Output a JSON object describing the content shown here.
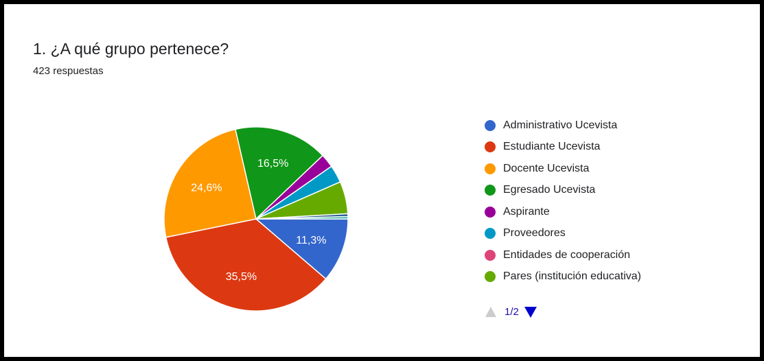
{
  "question": {
    "title": "1. ¿A qué grupo pertenece?",
    "responses": "423 respuestas"
  },
  "chart_data": {
    "type": "pie",
    "title": "",
    "slices": [
      {
        "label": "Administrativo Ucevista",
        "value": 11.3,
        "color": "#3366cc",
        "display": "11,3%"
      },
      {
        "label": "Estudiante Ucevista",
        "value": 35.5,
        "color": "#dc3912",
        "display": "35,5%"
      },
      {
        "label": "Docente Ucevista",
        "value": 24.6,
        "color": "#ff9900",
        "display": "24,6%"
      },
      {
        "label": "Egresado Ucevista",
        "value": 16.5,
        "color": "#109618",
        "display": "16,5%"
      },
      {
        "label": "Aspirante",
        "value": 2.4,
        "color": "#990099",
        "display": ""
      },
      {
        "label": "Proveedores",
        "value": 3.1,
        "color": "#0099c6",
        "display": ""
      },
      {
        "label": "Entidades de cooperación",
        "value": 0.0,
        "color": "#dd4477",
        "display": ""
      },
      {
        "label": "Pares (institución educativa)",
        "value": 5.7,
        "color": "#66aa00",
        "display": ""
      },
      {
        "label": "",
        "value": 0.5,
        "color": "#316395",
        "display": ""
      },
      {
        "label": "",
        "value": 0.4,
        "color": "#22aa99",
        "display": ""
      }
    ],
    "legend_position": "right"
  },
  "pager": {
    "label": "1/2",
    "prev_icon": "triangle-up-icon",
    "next_icon": "triangle-down-icon",
    "prev_color": "#cccccc",
    "next_color": "#0000cc"
  }
}
